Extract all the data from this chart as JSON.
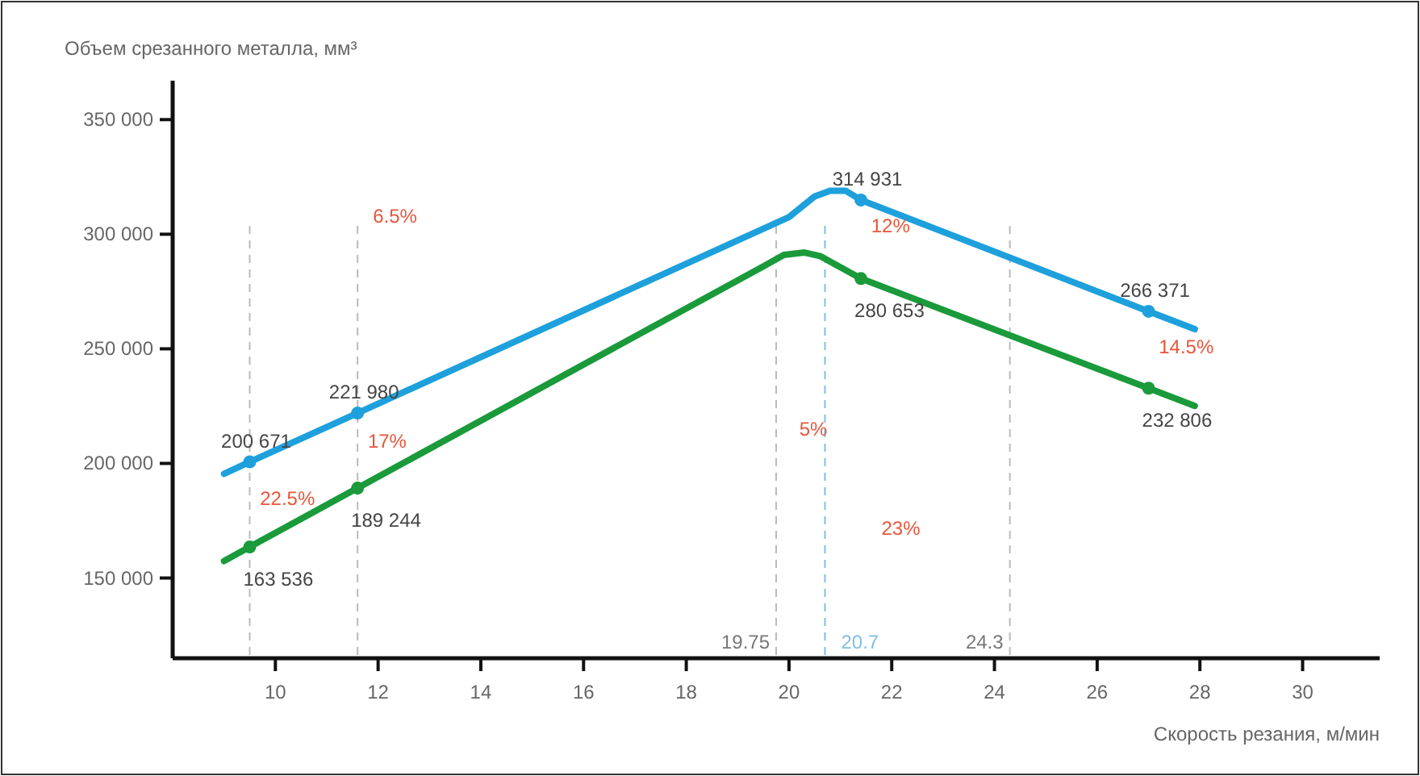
{
  "chart_data": {
    "type": "line",
    "xlabel": "Скорость резания, м/мин",
    "ylabel": "Объем срезанного металла, мм³",
    "xlim": [
      8,
      31.5
    ],
    "xticks": [
      10,
      12,
      14,
      16,
      18,
      20,
      22,
      24,
      26,
      28,
      30
    ],
    "ylim": [
      115000,
      367000
    ],
    "yticks": [
      {
        "value": 150000,
        "label": "150 000"
      },
      {
        "value": 200000,
        "label": "200 000"
      },
      {
        "value": 250000,
        "label": "250 000"
      },
      {
        "value": 300000,
        "label": "300 000"
      },
      {
        "value": 350000,
        "label": "350 000"
      }
    ],
    "grid": false,
    "line_style": "solid",
    "marker": "none",
    "series": [
      {
        "color": "#1ea0dc",
        "x": [
          9.0,
          9.5,
          11.6,
          20.0,
          20.5,
          20.8,
          21.1,
          21.4,
          27.0,
          27.9
        ],
        "values": [
          195500,
          200671,
          221980,
          307500,
          316500,
          319000,
          319000,
          314931,
          266371,
          258600
        ]
      },
      {
        "color": "#1a9a3a",
        "x": [
          9.0,
          9.5,
          11.6,
          19.5,
          19.9,
          20.3,
          20.6,
          21.4,
          27.0,
          27.9
        ],
        "values": [
          157400,
          163536,
          189244,
          286000,
          291000,
          292000,
          290500,
          280653,
          232806,
          225100
        ]
      },
      {
        "type": "scatter",
        "marker": "circle",
        "color": "#1ea0dc",
        "x": [
          9.5,
          11.6,
          21.4,
          27.0
        ],
        "values": [
          200671,
          221980,
          314931,
          266371
        ],
        "value_labels": [
          "200 671",
          "221 980",
          "314 931",
          "266 371"
        ]
      },
      {
        "type": "scatter",
        "marker": "circle",
        "color": "#1a9a3a",
        "x": [
          9.5,
          11.6,
          21.4,
          27.0
        ],
        "values": [
          163536,
          189244,
          280653,
          232806
        ],
        "value_labels": [
          "163 536",
          "189 244",
          "280 653",
          "232 806"
        ]
      }
    ],
    "ref_lines": [
      {
        "axis": "x",
        "value": 9.5,
        "color": "#bbbbbb",
        "line_style": "dashed"
      },
      {
        "axis": "x",
        "value": 11.6,
        "color": "#bbbbbb",
        "line_style": "dashed"
      },
      {
        "axis": "x",
        "value": 19.75,
        "label": "19.75",
        "color": "#bbbbbb",
        "line_style": "dashed"
      },
      {
        "axis": "x",
        "value": 20.7,
        "label": "20.7",
        "color": "#7fbfe6",
        "line_style": "dashed"
      },
      {
        "axis": "x",
        "value": 24.3,
        "label": "24.3",
        "color": "#bbbbbb",
        "line_style": "dashed"
      }
    ],
    "annotations": [
      "6.5%",
      "17%",
      "22.5%",
      "12%",
      "14.5%",
      "5%",
      "23%"
    ]
  }
}
